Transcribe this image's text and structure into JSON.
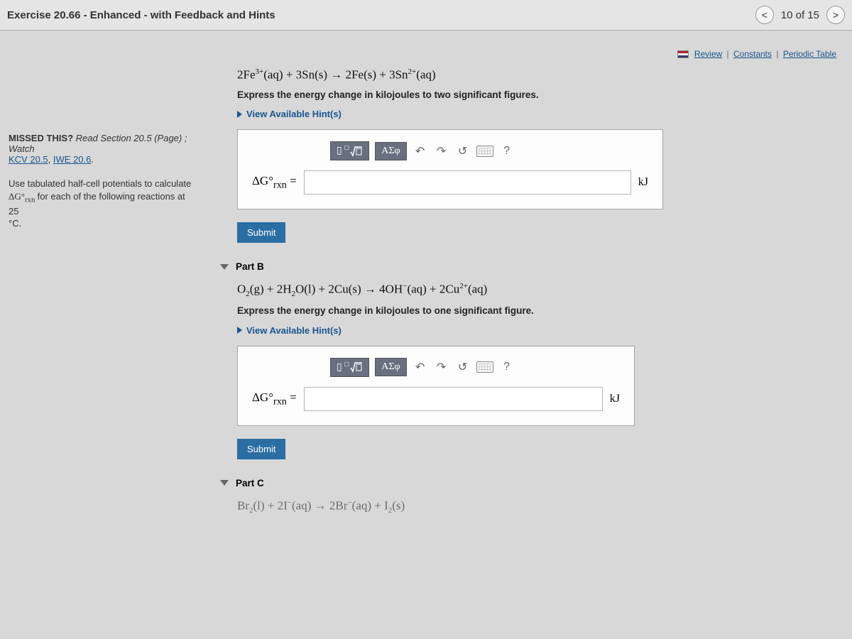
{
  "topbar": {
    "title": "Exercise 20.66 - Enhanced - with Feedback and Hints",
    "progress": "10 of 15"
  },
  "toplinks": {
    "review": "Review",
    "constants": "Constants",
    "periodic": "Periodic Table"
  },
  "sidebar": {
    "missed_label": "MISSED THIS?",
    "missed_text": " Read Section 20.5 (Page) ; Watch ",
    "kcv_link": "KCV 20.5",
    "iwe_link": "IWE 20.6",
    "sep": ", ",
    "period": ".",
    "usetab_text1": "Use tabulated half-cell potentials to calculate ",
    "usetab_text2": " for each of the following reactions at 25 ",
    "degree": "°C.",
    "dg_symbol": "ΔG°",
    "rxn": "rxn"
  },
  "tools": {
    "templates_icon": "▯",
    "sqrt_label": "√□",
    "greek_label": "ΑΣφ",
    "undo": "↶",
    "redo": "↷",
    "reset": "↺",
    "help": "?"
  },
  "partA": {
    "equation_html": "2Fe<sup>3+</sup>(aq) + 3Sn(s) → 2Fe(s) + 3Sn<sup>2+</sup>(aq)",
    "instruction": "Express the energy change in kilojoules to two significant figures.",
    "hints_label": "View Available Hint(s)",
    "answer_prefix": "ΔG°",
    "answer_sub": "rxn",
    "equals": " = ",
    "unit": "kJ",
    "submit": "Submit"
  },
  "partB": {
    "title": "Part B",
    "equation_html": "O<sub>2</sub>(g) + 2H<sub>2</sub>O(l) + 2Cu(s) → 4OH<sup>−</sup>(aq) + 2Cu<sup>2+</sup>(aq)",
    "instruction": "Express the energy change in kilojoules to one significant figure.",
    "hints_label": "View Available Hint(s)",
    "answer_prefix": "ΔG°",
    "answer_sub": "rxn",
    "equals": " = ",
    "unit": "kJ",
    "submit": "Submit"
  },
  "partC": {
    "title": "Part C",
    "equation_html": "Br<sub>2</sub>(l) + 2I<sup>−</sup>(aq) → 2Br<sup>−</sup>(aq) + I<sub>2</sub>(s)"
  },
  "colors": {
    "link": "#1a5490",
    "button_primary": "#2b6ea4",
    "tool_dark": "#6a6f80",
    "page_bg": "#d8d8d8"
  }
}
